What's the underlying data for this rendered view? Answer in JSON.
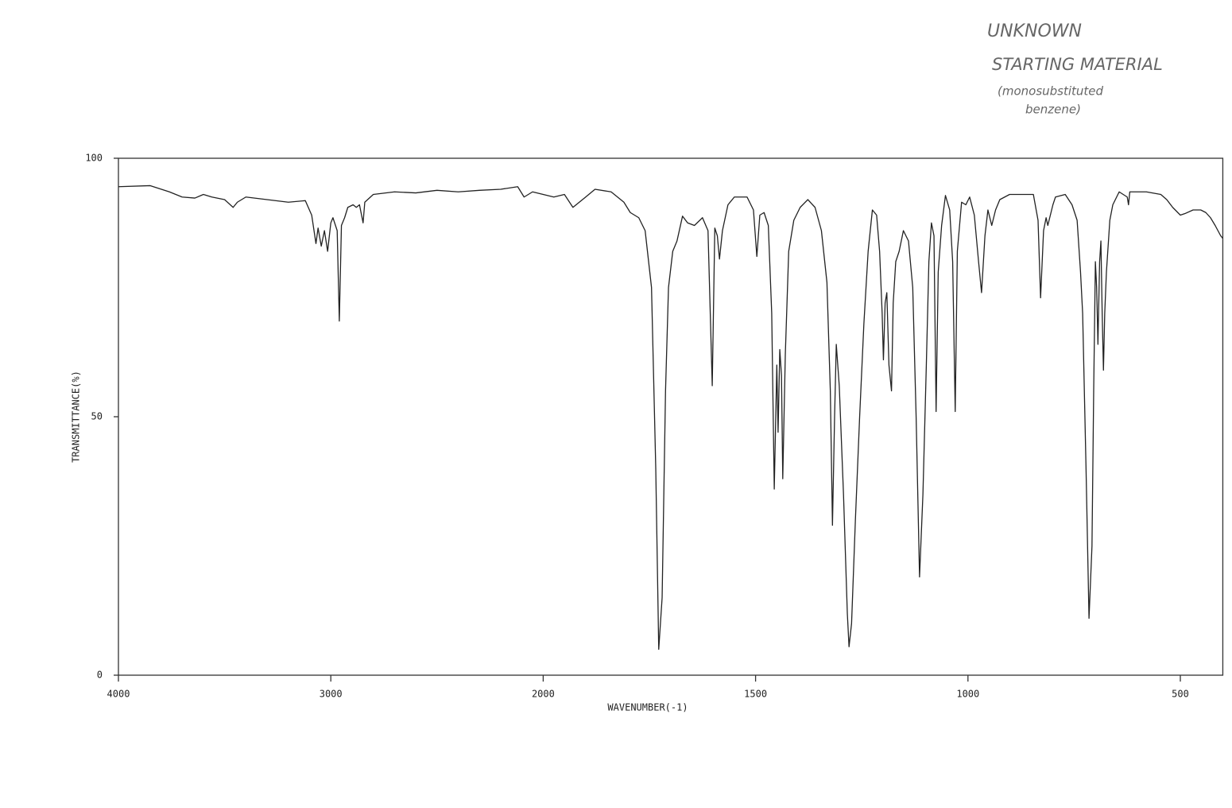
{
  "chart_data": {
    "type": "line",
    "title": null,
    "annotations": [
      "UNKNOWN",
      "STARTING MATERIAL",
      "(monosubstituted",
      "benzene)"
    ],
    "x_label": "WAVENUMBER(-1)",
    "y_label": "TRANSMITTANCE(%)",
    "xlim": [
      4000,
      400
    ],
    "xticks": [
      4000,
      3000,
      2000,
      1500,
      1000,
      500
    ],
    "ylim": [
      0,
      100
    ],
    "yticks": [
      0,
      50,
      100
    ],
    "color": "#222222",
    "x": [
      4000,
      3850,
      3760,
      3700,
      3640,
      3600,
      3560,
      3500,
      3460,
      3440,
      3400,
      3300,
      3200,
      3120,
      3090,
      3070,
      3060,
      3045,
      3030,
      3015,
      3000,
      2990,
      2970,
      2960,
      2950,
      2935,
      2920,
      2895,
      2880,
      2865,
      2848,
      2840,
      2800,
      2700,
      2600,
      2500,
      2400,
      2300,
      2200,
      2120,
      2090,
      2050,
      2000,
      1975,
      1950,
      1930,
      1900,
      1878,
      1840,
      1810,
      1795,
      1775,
      1760,
      1745,
      1735,
      1728,
      1720,
      1712,
      1705,
      1695,
      1685,
      1672,
      1660,
      1644,
      1625,
      1612,
      1602,
      1596,
      1590,
      1585,
      1578,
      1565,
      1550,
      1520,
      1505,
      1497,
      1490,
      1480,
      1470,
      1462,
      1456,
      1450,
      1447,
      1443,
      1439,
      1436,
      1430,
      1422,
      1410,
      1395,
      1377,
      1360,
      1345,
      1332,
      1324,
      1319,
      1314,
      1310,
      1303,
      1293,
      1284,
      1280,
      1274,
      1265,
      1255,
      1245,
      1235,
      1225,
      1215,
      1208,
      1202,
      1199,
      1195,
      1191,
      1186,
      1180,
      1176,
      1170,
      1162,
      1152,
      1140,
      1130,
      1122,
      1114,
      1106,
      1098,
      1092,
      1086,
      1080,
      1075,
      1070,
      1062,
      1053,
      1043,
      1036,
      1030,
      1025,
      1015,
      1005,
      996,
      985,
      975,
      968,
      960,
      953,
      944,
      935,
      925,
      902,
      846,
      835,
      829,
      822,
      816,
      812,
      800,
      794,
      771,
      755,
      743,
      735,
      730,
      722,
      715,
      708,
      704,
      700,
      697,
      694,
      690,
      687,
      684,
      681,
      678,
      674,
      666,
      659,
      644,
      625,
      622,
      619,
      580,
      546,
      532,
      518,
      500,
      489,
      470,
      452,
      440,
      429,
      418,
      405,
      400
    ],
    "values": [
      94.5,
      94.7,
      93.5,
      92.5,
      92.3,
      93,
      92.5,
      92,
      90.5,
      91.5,
      92.5,
      92,
      91.5,
      91.8,
      89,
      83.5,
      86.5,
      83,
      86,
      82,
      87.5,
      88.5,
      86,
      68.5,
      87,
      88.5,
      90.5,
      91,
      90.5,
      91,
      87.5,
      91.5,
      93,
      93.5,
      93.3,
      93.8,
      93.5,
      93.8,
      94,
      94.5,
      92.5,
      93.5,
      93,
      92.5,
      93,
      90.5,
      92.5,
      94,
      93.5,
      91.5,
      89.5,
      88.5,
      86,
      75,
      40,
      5,
      15,
      55,
      75,
      82,
      84,
      88.8,
      87.5,
      87,
      88.5,
      86,
      56,
      86.5,
      85,
      80.5,
      86,
      91,
      92.5,
      92.5,
      90,
      81,
      89,
      89.5,
      87,
      70,
      36,
      60,
      47,
      63,
      58,
      38,
      62,
      82,
      88,
      90.5,
      92,
      90.5,
      86,
      76,
      55,
      29,
      50,
      64,
      56,
      35,
      12,
      5.5,
      10,
      30,
      50,
      68,
      82,
      90,
      89,
      82,
      70,
      61,
      72,
      74,
      60,
      55,
      72,
      80,
      82,
      86,
      84,
      75,
      50,
      19,
      35,
      60,
      80,
      87.5,
      85,
      51,
      78,
      87,
      92.8,
      90,
      80,
      51,
      82,
      91.5,
      91,
      92.5,
      89,
      80,
      74,
      85,
      90,
      87,
      90,
      92,
      93,
      93,
      88,
      73,
      86,
      88.5,
      87,
      91,
      92.5,
      93,
      91,
      88,
      78,
      70,
      40,
      11,
      25,
      55,
      80,
      75,
      64,
      80,
      84,
      70,
      59,
      70,
      78,
      88,
      91,
      93.5,
      92.5,
      91,
      93.5,
      93.5,
      93,
      92,
      90.5,
      89,
      89.3,
      90,
      90,
      89.5,
      88.5,
      87,
      85,
      84.5
    ]
  }
}
